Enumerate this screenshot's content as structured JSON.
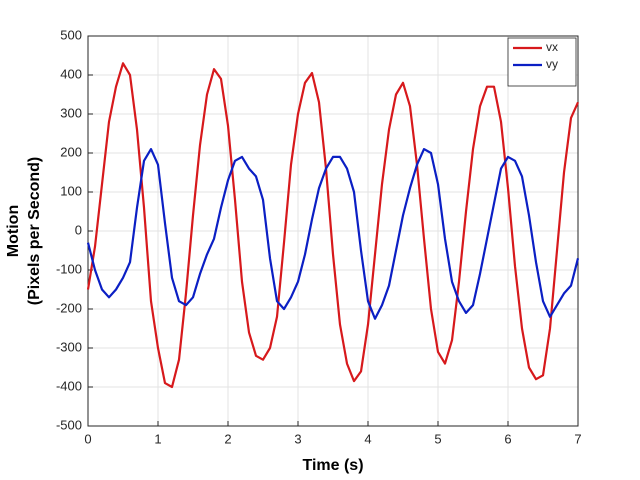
{
  "chart_data": {
    "type": "line",
    "xlabel": "Time (s)",
    "ylabel": [
      "Motion",
      "(Pixels per Second)"
    ],
    "xlim": [
      0,
      7
    ],
    "ylim": [
      -500,
      500
    ],
    "xticks": [
      0,
      1,
      2,
      3,
      4,
      5,
      6,
      7
    ],
    "yticks": [
      -500,
      -400,
      -300,
      -200,
      -100,
      0,
      100,
      200,
      300,
      400,
      500
    ],
    "grid": true,
    "legend_position": "northeast",
    "x": [
      0,
      0.1,
      0.2,
      0.3,
      0.4,
      0.5,
      0.6,
      0.7,
      0.8,
      0.9,
      1,
      1.1,
      1.2,
      1.3,
      1.4,
      1.5,
      1.6,
      1.7,
      1.8,
      1.9,
      2,
      2.1,
      2.2,
      2.3,
      2.4,
      2.5,
      2.6,
      2.7,
      2.8,
      2.9,
      3,
      3.1,
      3.2,
      3.3,
      3.4,
      3.5,
      3.6,
      3.7,
      3.8,
      3.9,
      4,
      4.1,
      4.2,
      4.3,
      4.4,
      4.5,
      4.6,
      4.7,
      4.8,
      4.9,
      5,
      5.1,
      5.2,
      5.3,
      5.4,
      5.5,
      5.6,
      5.7,
      5.8,
      5.9,
      6,
      6.1,
      6.2,
      6.3,
      6.4,
      6.5,
      6.6,
      6.7,
      6.8,
      6.9,
      7
    ],
    "series": [
      {
        "name": "vx",
        "color": "#d7191c",
        "values": [
          -150,
          -40,
          120,
          280,
          370,
          430,
          400,
          260,
          60,
          -180,
          -300,
          -390,
          -400,
          -330,
          -160,
          40,
          220,
          350,
          415,
          390,
          270,
          80,
          -130,
          -260,
          -320,
          -330,
          -300,
          -220,
          -30,
          170,
          300,
          380,
          405,
          330,
          160,
          -60,
          -240,
          -340,
          -385,
          -360,
          -240,
          -60,
          120,
          260,
          350,
          380,
          320,
          170,
          -20,
          -200,
          -310,
          -340,
          -280,
          -130,
          50,
          210,
          320,
          370,
          370,
          280,
          110,
          -90,
          -250,
          -350,
          -380,
          -370,
          -250,
          -50,
          150,
          290,
          330
        ]
      },
      {
        "name": "vy",
        "color": "#0b1fc4",
        "values": [
          -30,
          -100,
          -150,
          -170,
          -150,
          -120,
          -80,
          60,
          180,
          210,
          170,
          20,
          -120,
          -180,
          -190,
          -170,
          -110,
          -60,
          -20,
          60,
          130,
          180,
          190,
          160,
          140,
          80,
          -70,
          -180,
          -200,
          -170,
          -130,
          -60,
          30,
          110,
          160,
          190,
          190,
          160,
          100,
          -50,
          -180,
          -225,
          -190,
          -140,
          -50,
          40,
          110,
          170,
          210,
          200,
          120,
          -20,
          -130,
          -180,
          -210,
          -190,
          -110,
          -20,
          70,
          160,
          190,
          180,
          140,
          40,
          -80,
          -180,
          -220,
          -190,
          -160,
          -140,
          -70
        ]
      }
    ]
  }
}
